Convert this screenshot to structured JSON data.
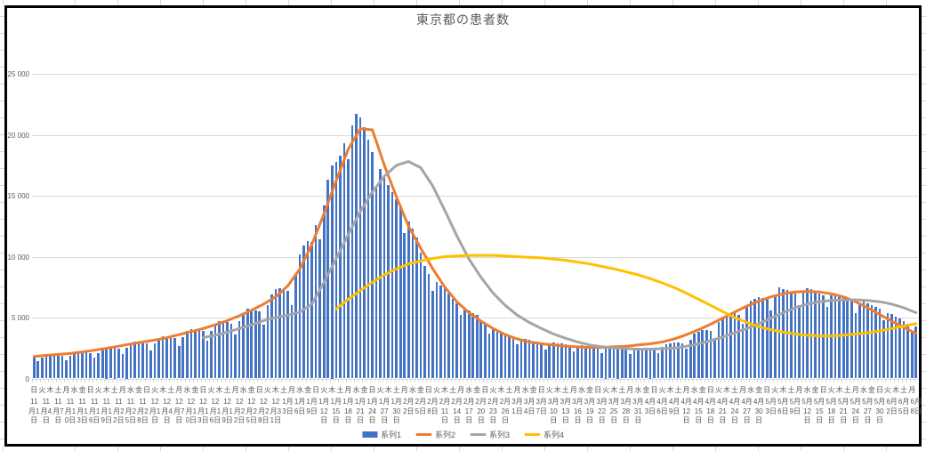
{
  "chart": {
    "title": "東京都の患者数",
    "colors": {
      "bar": "#4472C4",
      "series2": "#ED7D31",
      "series3": "#A5A5A5",
      "series4": "#FFC000",
      "grid": "#D9D9D9",
      "axis_text": "#595959",
      "chart_border": "#000000",
      "sheet_grid": "#D9D9D9"
    },
    "y_axis": {
      "ticks": [
        {
          "v": 0,
          "label": "0"
        },
        {
          "v": 5000,
          "label": "5 000"
        },
        {
          "v": 10000,
          "label": "10 000"
        },
        {
          "v": 15000,
          "label": "15 000"
        },
        {
          "v": 20000,
          "label": "20 000"
        },
        {
          "v": 25000,
          "label": "25 000"
        }
      ]
    },
    "x_axis": {
      "dow_names": [
        "日",
        "月",
        "火",
        "水",
        "木",
        "金",
        "土"
      ],
      "dow_step_days": 2,
      "date_step_days": 3,
      "date_labels": [
        "11月1日",
        "11月4日",
        "11月7日",
        "11月10日",
        "11月13日",
        "11月16日",
        "11月19日",
        "11月22日",
        "11月25日",
        "11月28日",
        "12月1日",
        "12月4日",
        "12月7日",
        "12月10日",
        "12月13日",
        "12月16日",
        "12月19日",
        "12月22日",
        "12月25日",
        "12月28日",
        "12月31日",
        "1月3日",
        "1月6日",
        "1月9日",
        "1月12日",
        "1月15日",
        "1月18日",
        "1月21日",
        "1月24日",
        "1月27日",
        "1月30日",
        "2月2日",
        "2月5日",
        "2月8日",
        "2月11日",
        "2月14日",
        "2月17日",
        "2月20日",
        "2月23日",
        "2月26日",
        "3月1日",
        "3月4日",
        "3月7日",
        "3月10日",
        "3月13日",
        "3月16日",
        "3月19日",
        "3月22日",
        "3月25日",
        "3月28日",
        "3月31日",
        "4月3日",
        "4月6日",
        "4月9日",
        "4月12日",
        "4月15日",
        "4月18日",
        "4月21日",
        "4月24日",
        "4月27日",
        "4月30日",
        "5月3日",
        "5月6日",
        "5月9日",
        "5月12日",
        "5月15日",
        "5月18日",
        "5月21日",
        "5月24日",
        "5月27日",
        "5月30日",
        "6月2日",
        "6月5日",
        "6月8日"
      ]
    },
    "legend": [
      {
        "name": "系列1",
        "type": "bar",
        "color": "#4472C4"
      },
      {
        "name": "系列2",
        "type": "line",
        "color": "#ED7D31"
      },
      {
        "name": "系列3",
        "type": "line",
        "color": "#A5A5A5"
      },
      {
        "name": "系列4",
        "type": "line",
        "color": "#FFC000"
      }
    ]
  },
  "chart_data": {
    "type": "combo",
    "title": "東京都の患者数",
    "ylim": [
      0,
      25000
    ],
    "n_days": 220,
    "x_start_label": "11月1日",
    "x_end_label": "6月8日",
    "bar_series": {
      "name": "系列1",
      "color": "#4472C4",
      "values": [
        1800,
        1450,
        1750,
        1950,
        2000,
        1980,
        1920,
        1880,
        1500,
        1850,
        2150,
        2250,
        2200,
        2150,
        2100,
        1700,
        2100,
        2400,
        2500,
        2450,
        2500,
        2450,
        2000,
        2500,
        2900,
        3000,
        2950,
        2900,
        2850,
        2300,
        2900,
        3300,
        3450,
        3400,
        3350,
        3300,
        2650,
        3400,
        3900,
        4050,
        4000,
        3950,
        3900,
        3100,
        3900,
        4500,
        4700,
        4650,
        4600,
        4500,
        3600,
        4700,
        5400,
        5700,
        5650,
        5600,
        5500,
        4400,
        6000,
        6900,
        7300,
        7400,
        7300,
        7200,
        6000,
        8600,
        10200,
        10900,
        11300,
        11200,
        12600,
        11400,
        14200,
        16300,
        17500,
        17800,
        18300,
        19300,
        18000,
        20800,
        21700,
        21400,
        20600,
        19600,
        18600,
        15800,
        17200,
        16600,
        15900,
        15300,
        14700,
        14100,
        11900,
        12900,
        12300,
        11600,
        10300,
        9200,
        8600,
        7200,
        7900,
        7600,
        7400,
        7000,
        6500,
        6200,
        5200,
        5700,
        5600,
        5400,
        5200,
        4800,
        4400,
        3700,
        4100,
        4000,
        3800,
        3600,
        3500,
        3400,
        2800,
        3200,
        3250,
        3150,
        3050,
        3000,
        2950,
        2400,
        2850,
        2950,
        2900,
        2850,
        2800,
        2750,
        2250,
        2650,
        2750,
        2700,
        2650,
        2600,
        2550,
        2100,
        2500,
        2600,
        2550,
        2500,
        2480,
        2450,
        2000,
        2400,
        2550,
        2550,
        2550,
        2500,
        2480,
        2050,
        2600,
        2800,
        2900,
        2950,
        2950,
        2900,
        2450,
        3200,
        3700,
        3850,
        3950,
        3950,
        3900,
        3300,
        4600,
        5100,
        5300,
        5400,
        5350,
        5250,
        4500,
        5900,
        6400,
        6550,
        6650,
        6600,
        6500,
        5600,
        6900,
        7450,
        7300,
        7250,
        7100,
        6950,
        6000,
        7100,
        7400,
        7300,
        7150,
        7000,
        6850,
        5900,
        6800,
        6900,
        6800,
        6650,
        6500,
        6350,
        5400,
        6200,
        6300,
        6150,
        6000,
        5850,
        5700,
        4800,
        5400,
        5300,
        5100,
        4900,
        4700,
        4500,
        3800,
        4300
      ]
    },
    "line_series": [
      {
        "name": "系列2",
        "color": "#ED7D31",
        "start_day": 0,
        "x_step": 3,
        "values": [
          1800,
          1900,
          1980,
          2050,
          2180,
          2320,
          2480,
          2650,
          2830,
          3000,
          3150,
          3350,
          3600,
          3850,
          4100,
          4400,
          4750,
          5150,
          5600,
          6100,
          6700,
          7600,
          9000,
          11000,
          13500,
          16200,
          18800,
          20500,
          20400,
          17500,
          14900,
          12500,
          10700,
          9000,
          7500,
          6300,
          5400,
          4700,
          4100,
          3600,
          3250,
          3000,
          2850,
          2750,
          2650,
          2600,
          2550,
          2550,
          2600,
          2650,
          2750,
          2850,
          3000,
          3250,
          3600,
          4000,
          4450,
          4950,
          5450,
          5950,
          6350,
          6700,
          6950,
          7100,
          7150,
          7100,
          6950,
          6700,
          6300,
          5800,
          5250,
          4700,
          4200,
          3700
        ]
      },
      {
        "name": "系列3",
        "color": "#A5A5A5",
        "start_day": 42,
        "x_step": 3,
        "values": [
          3350,
          3550,
          3800,
          4100,
          4400,
          4750,
          5000,
          5200,
          5450,
          6100,
          7900,
          9800,
          11800,
          13700,
          15300,
          16600,
          17500,
          17800,
          17300,
          15800,
          13800,
          11700,
          9800,
          8300,
          7000,
          6000,
          5200,
          4600,
          4100,
          3650,
          3300,
          3000,
          2750,
          2600,
          2500,
          2450,
          2400,
          2400,
          2450,
          2500,
          2650,
          2850,
          3100,
          3400,
          3750,
          4100,
          4500,
          4950,
          5400,
          5800,
          6100,
          6300,
          6400,
          6450,
          6450,
          6400,
          6300,
          6100,
          5800,
          5400
        ]
      },
      {
        "name": "系列4",
        "color": "#FFC000",
        "start_day": 75,
        "x_step": 3,
        "values": [
          5700,
          6500,
          7200,
          7900,
          8500,
          9000,
          9400,
          9650,
          9850,
          10000,
          10050,
          10100,
          10100,
          10100,
          10050,
          10000,
          9950,
          9900,
          9800,
          9700,
          9550,
          9400,
          9200,
          9000,
          8750,
          8500,
          8200,
          7850,
          7450,
          7000,
          6500,
          6000,
          5500,
          5000,
          4600,
          4250,
          4000,
          3800,
          3650,
          3550,
          3500,
          3500,
          3550,
          3650,
          3750,
          3900,
          4100,
          4300,
          4500
        ]
      }
    ]
  }
}
